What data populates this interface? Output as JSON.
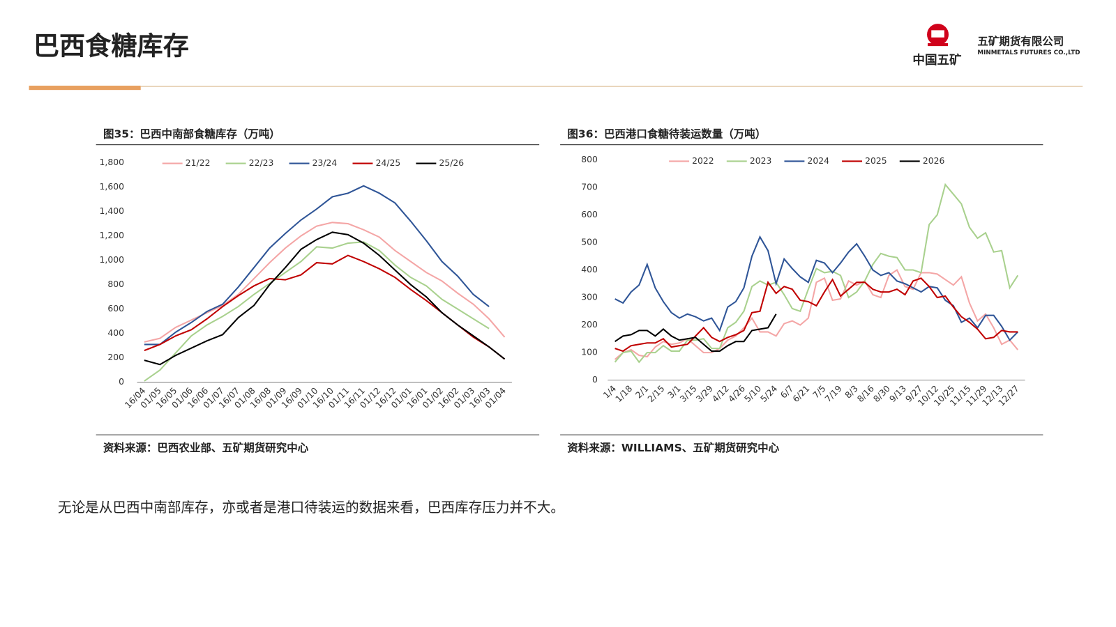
{
  "header": {
    "title": "巴西食糖库存"
  },
  "logo": {
    "cn": "中国五矿",
    "company": "五矿期货有限公司",
    "en": "MINMETALS FUTURES CO.,LTD"
  },
  "body": {
    "text": "无论是从巴西中南部库存，亦或者是港口待装运的数据来看，巴西库存压力并不大。"
  },
  "chart_data": [
    {
      "type": "line",
      "title": "图35：巴西中南部食糖库存（万吨）",
      "source": "资料来源：巴西农业部、五矿期货研究中心",
      "categories": [
        "16/04",
        "01/05",
        "16/05",
        "01/06",
        "16/06",
        "01/07",
        "16/07",
        "01/08",
        "16/08",
        "01/09",
        "16/09",
        "01/10",
        "16/10",
        "01/11",
        "16/11",
        "01/12",
        "16/12",
        "01/01",
        "16/01",
        "01/02",
        "16/02",
        "01/03",
        "16/03",
        "01/04"
      ],
      "ylim": [
        0,
        1800
      ],
      "yticks": [
        0,
        200,
        400,
        600,
        800,
        {
          "value": 1000,
          "label": "1,000"
        },
        {
          "value": 1200,
          "label": "1,200"
        },
        {
          "value": 1400,
          "label": "1,400"
        },
        {
          "value": 1600,
          "label": "1,600"
        },
        {
          "value": 1800,
          "label": "1,800"
        }
      ],
      "legend": "top",
      "series": [
        {
          "name": "21/22",
          "color": "#f4a6a6",
          "values": [
            330,
            360,
            450,
            510,
            570,
            630,
            720,
            850,
            980,
            1100,
            1200,
            1280,
            1310,
            1300,
            1250,
            1190,
            1080,
            990,
            900,
            830,
            730,
            640,
            520,
            370
          ]
        },
        {
          "name": "22/23",
          "color": "#a9d18e",
          "values": [
            10,
            100,
            240,
            380,
            470,
            540,
            620,
            720,
            810,
            900,
            990,
            1110,
            1100,
            1140,
            1150,
            1080,
            960,
            860,
            790,
            680,
            600,
            520,
            440,
            null
          ]
        },
        {
          "name": "23/24",
          "color": "#2f5597",
          "values": [
            310,
            310,
            410,
            490,
            580,
            640,
            780,
            940,
            1100,
            1220,
            1330,
            1420,
            1520,
            1550,
            1610,
            1550,
            1470,
            1320,
            1160,
            990,
            870,
            720,
            620,
            null
          ]
        },
        {
          "name": "24/25",
          "color": "#c00000",
          "values": [
            260,
            310,
            380,
            430,
            520,
            620,
            710,
            790,
            850,
            840,
            880,
            980,
            970,
            1040,
            990,
            930,
            860,
            760,
            670,
            570,
            470,
            370,
            290,
            190
          ]
        },
        {
          "name": "25/26",
          "color": "#000000",
          "values": [
            180,
            145,
            220,
            280,
            340,
            390,
            530,
            630,
            800,
            940,
            1090,
            1170,
            1230,
            1210,
            1140,
            1040,
            920,
            800,
            700,
            570,
            470,
            380,
            290,
            190
          ]
        }
      ]
    },
    {
      "type": "line",
      "title": "图36：巴西港口食糖待装运数量（万吨）",
      "source": "资料来源：WILLIAMS、五矿期货研究中心",
      "categories": [
        "1/4",
        null,
        "1/18",
        null,
        "2/1",
        null,
        "2/15",
        null,
        "3/1",
        null,
        "3/15",
        null,
        "3/29",
        null,
        "4/12",
        null,
        "4/26",
        null,
        "5/10",
        null,
        "5/24",
        null,
        "6/7",
        null,
        "6/21",
        null,
        "7/5",
        null,
        "7/19",
        null,
        "8/3",
        null,
        "8/16",
        null,
        "8/30",
        null,
        "9/13",
        null,
        "9/27",
        null,
        "10/12",
        null,
        "10/25",
        null,
        "11/15",
        null,
        "11/29",
        null,
        "12/13",
        null,
        "12/27"
      ],
      "ylim": [
        0,
        800
      ],
      "yticks": [
        0,
        100,
        200,
        300,
        400,
        500,
        600,
        700,
        800
      ],
      "legend": "top",
      "series": [
        {
          "name": "2022",
          "color": "#f4a6a6",
          "values": [
            75,
            100,
            110,
            90,
            85,
            120,
            140,
            130,
            135,
            150,
            125,
            100,
            100,
            115,
            145,
            160,
            190,
            225,
            175,
            175,
            160,
            205,
            215,
            200,
            225,
            355,
            370,
            290,
            295,
            360,
            345,
            360,
            310,
            300,
            380,
            400,
            340,
            330,
            390,
            390,
            385,
            365,
            345,
            375,
            280,
            215,
            240,
            190,
            130,
            145,
            110
          ]
        },
        {
          "name": "2023",
          "color": "#a9d18e",
          "values": [
            65,
            100,
            105,
            65,
            100,
            100,
            125,
            105,
            105,
            145,
            145,
            150,
            115,
            115,
            190,
            210,
            250,
            340,
            360,
            345,
            355,
            310,
            260,
            250,
            330,
            405,
            390,
            395,
            380,
            300,
            320,
            360,
            420,
            460,
            450,
            445,
            400,
            400,
            390,
            565,
            600,
            710,
            675,
            640,
            555,
            515,
            535,
            465,
            470,
            335,
            380
          ]
        },
        {
          "name": "2024",
          "color": "#2f5597",
          "values": [
            295,
            280,
            320,
            345,
            420,
            335,
            285,
            245,
            225,
            240,
            230,
            215,
            225,
            180,
            265,
            285,
            335,
            450,
            520,
            470,
            350,
            440,
            405,
            375,
            355,
            435,
            425,
            390,
            425,
            465,
            495,
            450,
            400,
            380,
            390,
            360,
            350,
            335,
            320,
            340,
            335,
            290,
            270,
            210,
            225,
            190,
            235,
            235,
            195,
            145,
            175
          ]
        },
        {
          "name": "2025",
          "color": "#c00000",
          "values": [
            115,
            105,
            125,
            130,
            135,
            135,
            150,
            120,
            125,
            130,
            160,
            190,
            155,
            140,
            155,
            165,
            180,
            245,
            250,
            355,
            315,
            340,
            330,
            290,
            285,
            270,
            320,
            365,
            305,
            330,
            355,
            355,
            330,
            320,
            320,
            330,
            310,
            360,
            370,
            340,
            300,
            305,
            265,
            230,
            210,
            185,
            150,
            155,
            180,
            175,
            175
          ]
        },
        {
          "name": "2026",
          "color": "#000000",
          "values": [
            140,
            160,
            165,
            180,
            180,
            160,
            185,
            160,
            145,
            150,
            155,
            130,
            105,
            105,
            125,
            140,
            140,
            180,
            185,
            190,
            240,
            null,
            null,
            null,
            null,
            null,
            null,
            null,
            null,
            null,
            null,
            null,
            null,
            null,
            null,
            null,
            null,
            null,
            null,
            null,
            null,
            null,
            null,
            null,
            null,
            null,
            null,
            null,
            null,
            null,
            null
          ]
        }
      ]
    }
  ]
}
